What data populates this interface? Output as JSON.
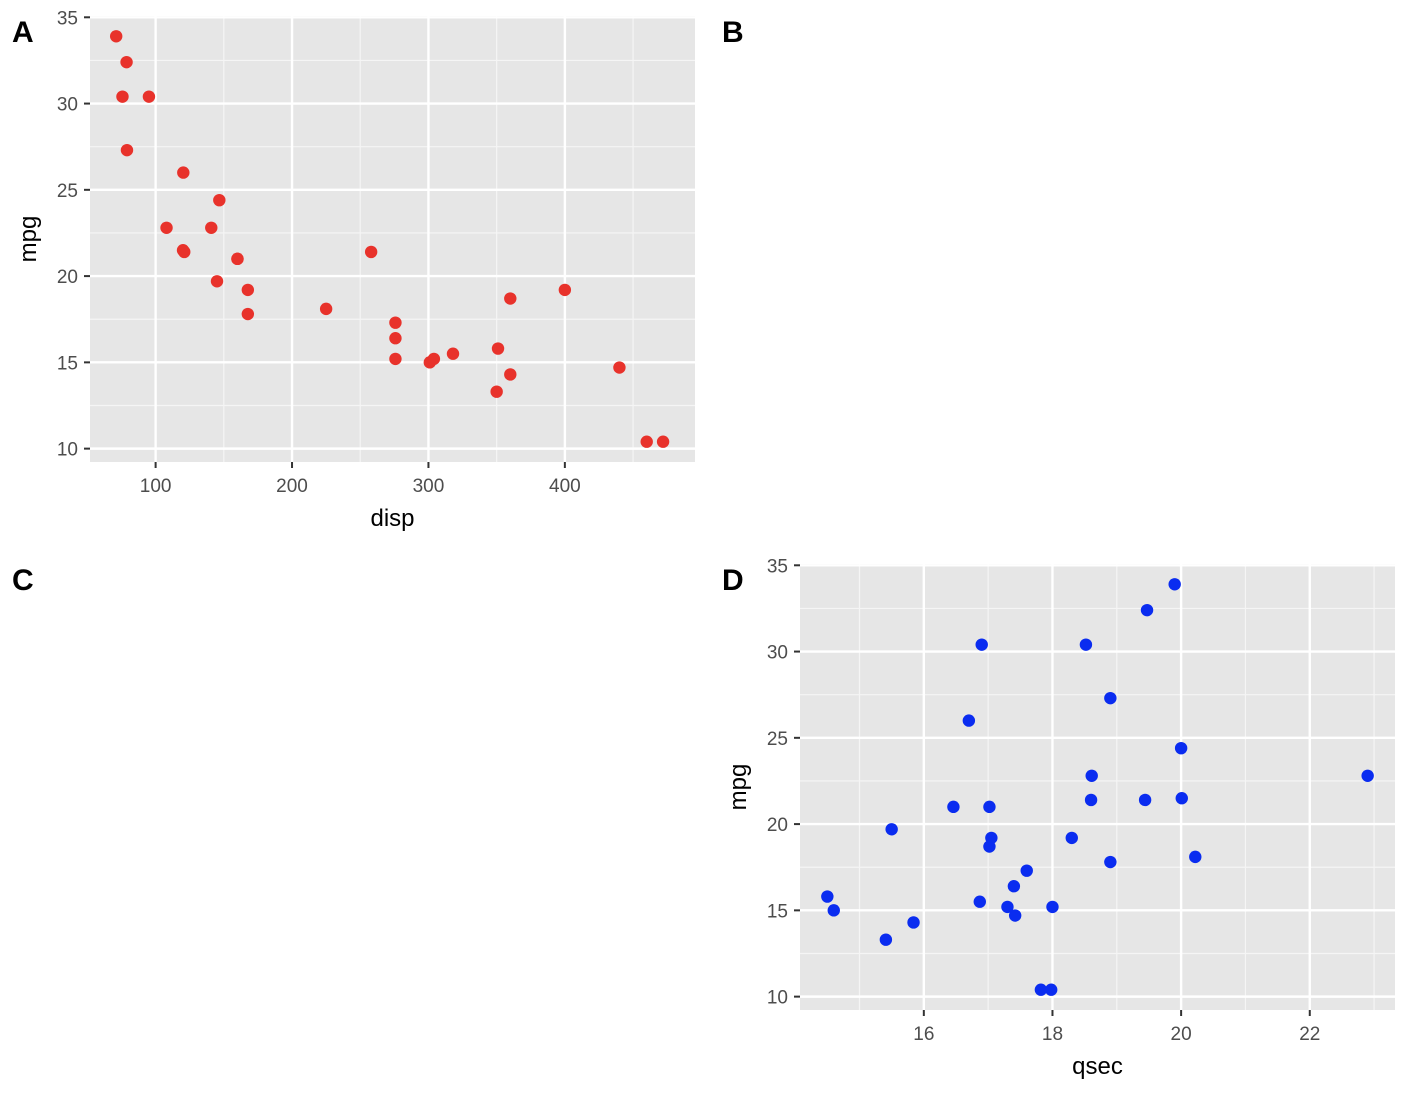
{
  "panels": {
    "A": {
      "letter": "A"
    },
    "B": {
      "letter": "B"
    },
    "C": {
      "letter": "C"
    },
    "D": {
      "letter": "D"
    }
  },
  "chart_data": [
    {
      "id": "A",
      "type": "scatter",
      "title": "",
      "xlabel": "disp",
      "ylabel": "mpg",
      "xlim": [
        51.9,
        495.4
      ],
      "ylim": [
        9.225,
        35.075
      ],
      "xticks": [
        100,
        200,
        300,
        400
      ],
      "yticks": [
        10,
        15,
        20,
        25,
        30,
        35
      ],
      "grid": true,
      "color": "#e8322b",
      "x": [
        160,
        160,
        108,
        258,
        360,
        225,
        360,
        146.7,
        140.8,
        167.6,
        167.6,
        275.8,
        275.8,
        275.8,
        472,
        460,
        440,
        78.7,
        75.7,
        71.1,
        120.1,
        318,
        304,
        350,
        400,
        79,
        120.3,
        95.1,
        351,
        145,
        301,
        121
      ],
      "y": [
        21,
        21,
        22.8,
        21.4,
        18.7,
        18.1,
        14.3,
        24.4,
        22.8,
        19.2,
        17.8,
        16.4,
        17.3,
        15.2,
        10.4,
        10.4,
        14.7,
        32.4,
        30.4,
        33.9,
        21.5,
        15.5,
        15.2,
        13.3,
        19.2,
        27.3,
        26,
        30.4,
        15.8,
        19.7,
        15,
        21.4
      ]
    },
    {
      "id": "D",
      "type": "scatter",
      "title": "",
      "xlabel": "qsec",
      "ylabel": "mpg",
      "xlim": [
        14.075,
        23.325
      ],
      "ylim": [
        9.225,
        35.075
      ],
      "xticks": [
        16,
        18,
        20,
        22
      ],
      "yticks": [
        10,
        15,
        20,
        25,
        30,
        35
      ],
      "grid": true,
      "color": "#0a2cf0",
      "x": [
        16.46,
        17.02,
        18.61,
        19.44,
        17.02,
        20.22,
        15.84,
        20,
        22.9,
        18.3,
        18.9,
        17.4,
        17.6,
        18,
        17.98,
        17.82,
        17.42,
        19.47,
        18.52,
        19.9,
        20.01,
        16.87,
        17.3,
        15.41,
        17.05,
        18.9,
        16.7,
        16.9,
        14.5,
        15.5,
        14.6,
        18.6
      ],
      "y": [
        21,
        21,
        22.8,
        21.4,
        18.7,
        18.1,
        14.3,
        24.4,
        22.8,
        19.2,
        17.8,
        16.4,
        17.3,
        15.2,
        10.4,
        10.4,
        14.7,
        32.4,
        30.4,
        33.9,
        21.5,
        15.5,
        15.2,
        13.3,
        19.2,
        27.3,
        26,
        30.4,
        15.8,
        19.7,
        15,
        21.4
      ]
    }
  ]
}
